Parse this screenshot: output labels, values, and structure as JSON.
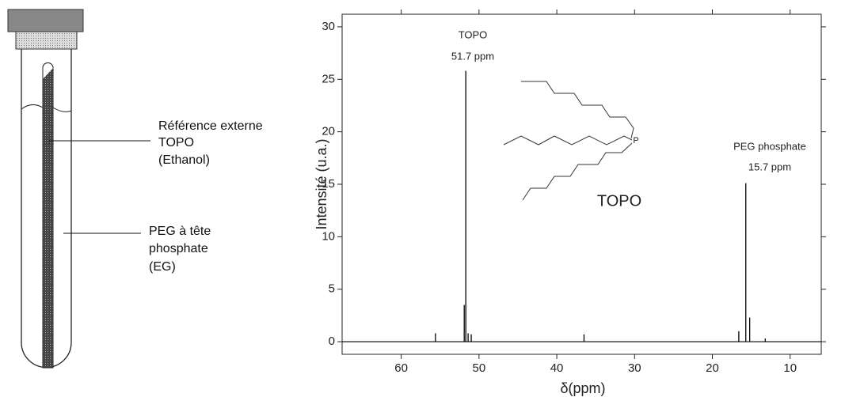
{
  "diagram": {
    "labels": [
      [
        "Référence externe",
        "TOPO",
        "(Ethanol)"
      ],
      [
        "PEG à tête",
        "phosphate",
        "(EG)"
      ]
    ]
  },
  "chart_data": {
    "type": "spectrum",
    "xlabel": "δ(ppm)",
    "ylabel": "Intensité (u.a.)",
    "x": [
      55.6,
      51.9,
      51.7,
      51.4,
      51.0,
      36.5,
      16.6,
      15.7,
      15.2,
      13.2
    ],
    "values": [
      0.8,
      3.5,
      25.8,
      0.8,
      0.7,
      0.7,
      1.0,
      15.1,
      2.3,
      0.3
    ],
    "color": "#000000",
    "xlim": [
      67.6,
      6
    ],
    "xticks": [
      60,
      50,
      40,
      30,
      20,
      10
    ],
    "ylim": [
      -1.2,
      31.2
    ],
    "yticks": [
      0,
      5,
      10,
      15,
      20,
      25,
      30
    ],
    "annotations": [
      "TOPO",
      "51.7 ppm",
      "PEG phosphate",
      "15.7 ppm",
      "TOPO"
    ],
    "structure_atom": "P"
  }
}
